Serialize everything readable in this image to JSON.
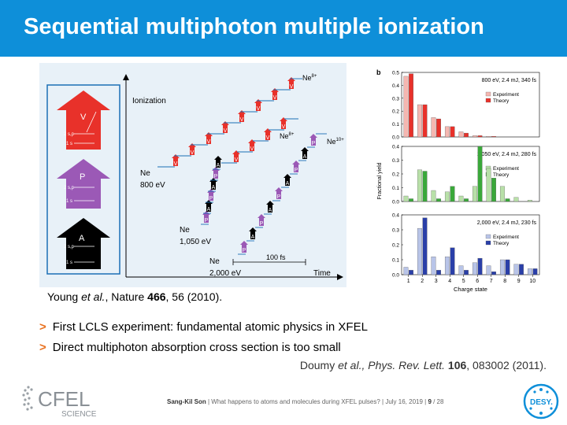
{
  "slide": {
    "title": "Sequential multiphoton multiple ionization",
    "caption_author": "Young ",
    "caption_etal": "et al.",
    "caption_journal": ", Nature ",
    "caption_volume": "466",
    "caption_rest": ", 56 (2010).",
    "bullets": [
      "First LCLS experiment: fundamental atomic physics in XFEL",
      "Direct multiphoton absorption cross section is too small"
    ],
    "ref2_author": "Doumy ",
    "ref2_etal": "et al.",
    "ref2_journal": ", Phys. Rev. Lett. ",
    "ref2_volume": "106",
    "ref2_rest": ", 083002 (2011).",
    "footer_author": "Sang-Kil Son",
    "footer_text": "  |  What happens to atoms and molecules during XFEL pulses?  |  July 16, 2019  |  ",
    "page_num": "9",
    "page_total": " / 28",
    "logo_cfel": "CFEL",
    "logo_science": "SCIENCE",
    "logo_desy": "DESY."
  },
  "diagram": {
    "axis_label": "Ionization",
    "time_label": "Time",
    "time_scale": "100 fs",
    "process_v": "V",
    "process_p": "P",
    "process_a": "A",
    "orbital_2sp": "2 s,p",
    "orbital_1s": "1 s",
    "ne": "Ne",
    "energy_800": "800 eV",
    "energy_1050": "1,050 eV",
    "energy_2000": "2,000 eV",
    "ne8": "Ne",
    "ne8_sup": "8+",
    "ne10": "Ne",
    "ne10_sup": "10+",
    "colors": {
      "v": "#e8312a",
      "p": "#9b59b6",
      "a": "#000000"
    }
  },
  "chart_data": {
    "type": "bar",
    "panel_label": "b",
    "ylabel": "Fractional yield",
    "xlabel": "Charge state",
    "categories": [
      "1",
      "2",
      "3",
      "4",
      "5",
      "6",
      "7",
      "8",
      "9",
      "10"
    ],
    "subplots": [
      {
        "title": "800 eV, 2.4 mJ, 340 fs",
        "ylim": [
          0,
          0.5
        ],
        "yticks": [
          "0.5",
          "0.4",
          "0.3",
          "0.2",
          "0.1",
          "0.0"
        ],
        "series": [
          {
            "name": "Experiment",
            "color": "#f5b7b1",
            "values": [
              0.47,
              0.25,
              0.15,
              0.08,
              0.04,
              0.01,
              0.005,
              0.0,
              0.0,
              0.0
            ]
          },
          {
            "name": "Theory",
            "color": "#e8312a",
            "values": [
              0.49,
              0.25,
              0.14,
              0.08,
              0.03,
              0.01,
              0.005,
              0.0,
              0.0,
              0.0
            ]
          }
        ]
      },
      {
        "title": "1,050 eV, 2.4 mJ, 280 fs",
        "ylim": [
          0,
          0.4
        ],
        "yticks": [
          "0.4",
          "0.3",
          "0.2",
          "0.1",
          "0.0"
        ],
        "series": [
          {
            "name": "Experiment",
            "color": "#b8e0a8",
            "values": [
              0.04,
              0.23,
              0.08,
              0.07,
              0.04,
              0.11,
              0.24,
              0.11,
              0.03,
              0.01
            ]
          },
          {
            "name": "Theory",
            "color": "#3aa83a",
            "values": [
              0.02,
              0.22,
              0.02,
              0.11,
              0.02,
              0.4,
              0.17,
              0.02,
              0.0,
              0.0
            ]
          }
        ]
      },
      {
        "title": "2,000 eV, 2.4 mJ, 230 fs",
        "ylim": [
          0,
          0.4
        ],
        "yticks": [
          "0.4",
          "0.3",
          "0.2",
          "0.1",
          "0.0"
        ],
        "series": [
          {
            "name": "Experiment",
            "color": "#b8c4e8",
            "values": [
              0.05,
              0.31,
              0.12,
              0.12,
              0.06,
              0.08,
              0.06,
              0.1,
              0.07,
              0.04
            ]
          },
          {
            "name": "Theory",
            "color": "#2a3fa8",
            "values": [
              0.03,
              0.38,
              0.03,
              0.18,
              0.03,
              0.11,
              0.02,
              0.1,
              0.07,
              0.04
            ]
          }
        ]
      }
    ]
  }
}
